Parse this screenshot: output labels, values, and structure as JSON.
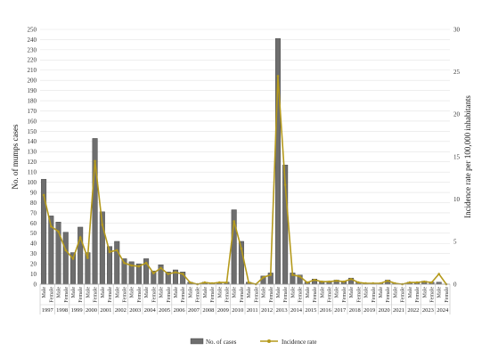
{
  "chart_data": {
    "type": "bar",
    "title": "",
    "ylabel": "No. of mumps cases",
    "y2label": "Incidence rate per 100,000 inhabitants",
    "ylim": [
      0,
      250
    ],
    "y2lim": [
      0,
      30
    ],
    "y_ticks": [
      0,
      10,
      20,
      30,
      40,
      50,
      60,
      70,
      80,
      90,
      100,
      110,
      120,
      130,
      140,
      150,
      160,
      170,
      180,
      190,
      200,
      210,
      220,
      230,
      240,
      250
    ],
    "y2_ticks": [
      0,
      5,
      10,
      15,
      20,
      25,
      30
    ],
    "categories": [
      "Male",
      "Female",
      "Male",
      "Female",
      "Male",
      "Female",
      "Male",
      "Female",
      "Male",
      "Female",
      "Male",
      "Female",
      "Male",
      "Female",
      "Male",
      "Female",
      "Male",
      "Female",
      "Male",
      "Female",
      "Male",
      "Female",
      "Male",
      "Female",
      "Male",
      "Female",
      "Male",
      "Female",
      "Male",
      "Female",
      "Male",
      "Female",
      "Male",
      "Female",
      "Male",
      "Female",
      "Male",
      "Female",
      "Male",
      "Female",
      "Male",
      "Female",
      "Male",
      "Female",
      "Male",
      "Female",
      "Male",
      "Female",
      "Male",
      "Female",
      "Male",
      "Female",
      "Male",
      "Female",
      "Male",
      "Female"
    ],
    "years": [
      "1997",
      "1998",
      "1999",
      "2000",
      "2001",
      "2002",
      "2003",
      "2004",
      "2005",
      "2006",
      "2007",
      "2008",
      "2009",
      "2010",
      "2011",
      "2012",
      "2013",
      "2014",
      "2015",
      "2016",
      "2017",
      "2018",
      "2019",
      "2020",
      "2021",
      "2022",
      "2023",
      "2024"
    ],
    "series": [
      {
        "name": "No. of cases",
        "type": "bar",
        "axis": "left",
        "color": "#6e6e6e",
        "values": [
          103,
          67,
          61,
          51,
          31,
          56,
          31,
          143,
          71,
          37,
          42,
          25,
          22,
          20,
          25,
          13,
          19,
          12,
          14,
          12,
          2,
          0,
          2,
          1,
          2,
          2,
          73,
          42,
          2,
          0,
          8,
          11,
          241,
          117,
          11,
          9,
          2,
          5,
          3,
          3,
          4,
          3,
          6,
          2,
          1,
          1,
          1,
          4,
          1,
          0,
          2,
          2,
          3,
          2,
          2,
          0
        ]
      },
      {
        "name": "Incidence rate",
        "type": "line",
        "axis": "right",
        "color": "#b59a1c",
        "values": [
          10.5,
          6.8,
          6.2,
          4.0,
          3.0,
          5.5,
          3.1,
          14.5,
          7.0,
          3.8,
          4.0,
          2.5,
          2.2,
          2.1,
          2.5,
          1.3,
          1.9,
          1.2,
          1.4,
          1.2,
          0.2,
          0.0,
          0.2,
          0.1,
          0.2,
          0.2,
          7.4,
          4.2,
          0.2,
          0.0,
          0.8,
          1.1,
          24.5,
          11.7,
          1.1,
          0.9,
          0.2,
          0.5,
          0.3,
          0.3,
          0.4,
          0.3,
          0.6,
          0.2,
          0.1,
          0.1,
          0.1,
          0.4,
          0.1,
          0.0,
          0.2,
          0.2,
          0.3,
          0.2,
          1.2,
          0.0
        ]
      }
    ],
    "grid": true,
    "legend_position": "bottom"
  }
}
